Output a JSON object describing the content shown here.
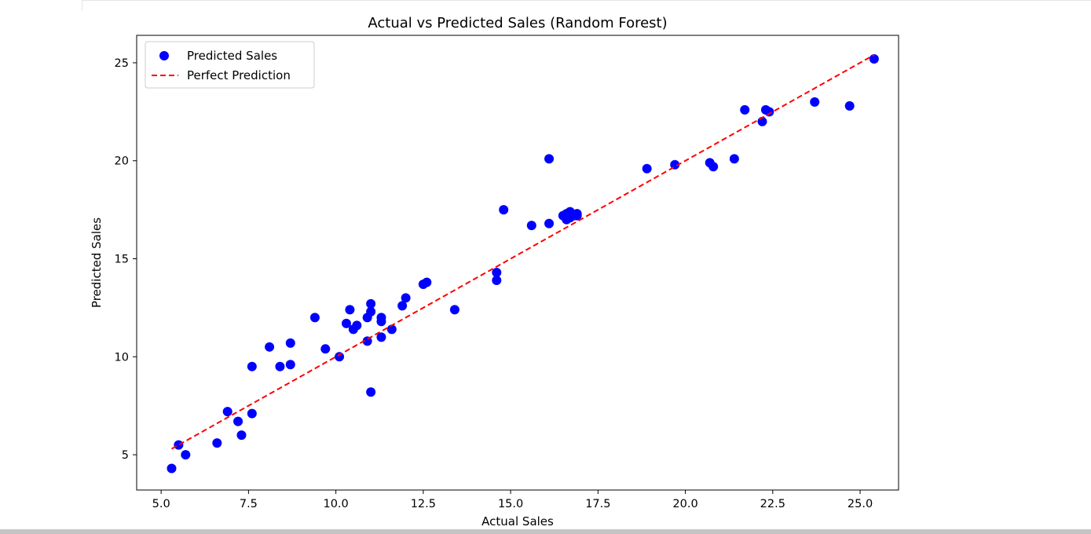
{
  "chart_data": {
    "type": "scatter",
    "title": "Actual vs Predicted Sales (Random Forest)",
    "xlabel": "Actual Sales",
    "ylabel": "Predicted Sales",
    "xlim": [
      4.3,
      26.1
    ],
    "ylim": [
      3.2,
      26.4
    ],
    "xticks": [
      "5.0",
      "7.5",
      "10.0",
      "12.5",
      "15.0",
      "17.5",
      "20.0",
      "22.5",
      "25.0"
    ],
    "yticks": [
      "5",
      "10",
      "15",
      "20",
      "25"
    ],
    "grid": false,
    "legend_placement": "upper-left",
    "colors": {
      "points": "#0000ff",
      "line": "#ff0000"
    },
    "series": [
      {
        "name": "Predicted Sales",
        "kind": "scatter",
        "points": [
          [
            5.3,
            4.3
          ],
          [
            5.5,
            5.5
          ],
          [
            5.7,
            5.0
          ],
          [
            6.6,
            5.6
          ],
          [
            6.9,
            7.2
          ],
          [
            7.2,
            6.7
          ],
          [
            7.3,
            6.0
          ],
          [
            7.6,
            7.1
          ],
          [
            7.6,
            9.5
          ],
          [
            8.1,
            10.5
          ],
          [
            8.4,
            9.5
          ],
          [
            8.7,
            9.6
          ],
          [
            8.7,
            10.7
          ],
          [
            9.4,
            12.0
          ],
          [
            9.7,
            10.4
          ],
          [
            10.1,
            10.0
          ],
          [
            10.3,
            11.7
          ],
          [
            10.4,
            12.4
          ],
          [
            10.5,
            11.4
          ],
          [
            10.6,
            11.6
          ],
          [
            10.9,
            10.8
          ],
          [
            10.9,
            12.0
          ],
          [
            11.0,
            12.3
          ],
          [
            11.0,
            12.7
          ],
          [
            11.0,
            8.2
          ],
          [
            11.3,
            11.0
          ],
          [
            11.3,
            11.8
          ],
          [
            11.3,
            12.0
          ],
          [
            11.6,
            11.4
          ],
          [
            11.9,
            12.6
          ],
          [
            12.0,
            13.0
          ],
          [
            12.5,
            13.7
          ],
          [
            12.6,
            13.8
          ],
          [
            13.4,
            12.4
          ],
          [
            14.6,
            14.3
          ],
          [
            14.6,
            13.9
          ],
          [
            14.8,
            17.5
          ],
          [
            15.6,
            16.7
          ],
          [
            16.1,
            20.1
          ],
          [
            16.1,
            16.8
          ],
          [
            16.5,
            17.2
          ],
          [
            16.6,
            17.0
          ],
          [
            16.6,
            17.3
          ],
          [
            16.7,
            17.1
          ],
          [
            16.7,
            17.4
          ],
          [
            16.8,
            17.2
          ],
          [
            16.9,
            17.3
          ],
          [
            16.9,
            17.2
          ],
          [
            18.9,
            19.6
          ],
          [
            19.7,
            19.8
          ],
          [
            20.7,
            19.9
          ],
          [
            20.8,
            19.7
          ],
          [
            21.4,
            20.1
          ],
          [
            21.7,
            22.6
          ],
          [
            22.2,
            22.0
          ],
          [
            22.3,
            22.6
          ],
          [
            22.4,
            22.5
          ],
          [
            23.7,
            23.0
          ],
          [
            24.7,
            22.8
          ],
          [
            25.4,
            25.2
          ]
        ]
      },
      {
        "name": "Perfect Prediction",
        "kind": "line",
        "style": "dashed",
        "points": [
          [
            5.3,
            5.3
          ],
          [
            25.4,
            25.4
          ]
        ]
      }
    ]
  }
}
